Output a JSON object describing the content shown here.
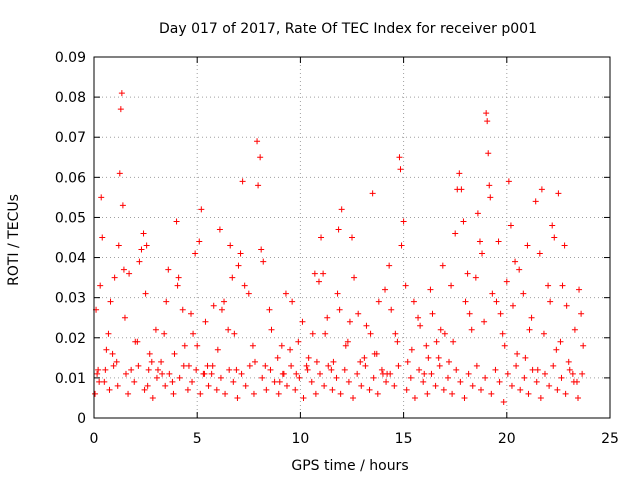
{
  "chart_data": {
    "type": "scatter",
    "title": "Day 017 of 2017, Rate Of TEC Index for receiver p001",
    "xlabel": "GPS time / hours",
    "ylabel": "ROTI / TECUs",
    "xlim": [
      0,
      25
    ],
    "ylim": [
      0,
      0.09
    ],
    "xticks": [
      0,
      5,
      10,
      15,
      20,
      25
    ],
    "xtick_labels": [
      "0",
      "5",
      "10",
      "15",
      "20",
      "25"
    ],
    "yticks": [
      0,
      0.01,
      0.02,
      0.03,
      0.04,
      0.05,
      0.06,
      0.07,
      0.08,
      0.09
    ],
    "ytick_labels": [
      "0",
      "0.01",
      "0.02",
      "0.03",
      "0.04",
      "0.05",
      "0.06",
      "0.07",
      "0.08",
      "0.09"
    ],
    "grid": true,
    "marker": "+",
    "color": "#ff0000",
    "series": [
      {
        "name": "p001",
        "x": [
          0.1,
          0.2,
          0.3,
          0.5,
          0.7,
          0.9,
          1.0,
          1.2,
          1.35,
          1.4,
          1.5,
          1.8,
          2.0,
          2.3,
          2.5,
          2.6,
          2.8,
          3.0,
          3.3,
          3.6,
          3.9,
          4.0,
          4.3,
          4.6,
          4.9,
          5.0,
          5.2,
          5.4,
          5.7,
          6.0,
          6.3,
          6.6,
          6.8,
          7.0,
          7.2,
          7.5,
          7.8,
          7.9,
          8.1,
          8.3,
          8.6,
          9.0,
          9.3,
          9.5,
          9.8,
          10.1,
          10.4,
          10.7,
          11.0,
          11.2,
          11.5,
          11.8,
          12.0,
          12.3,
          12.6,
          12.9,
          13.2,
          13.5,
          13.8,
          14.0,
          14.3,
          14.6,
          14.8,
          14.9,
          15.1,
          15.4,
          15.7,
          16.0,
          16.3,
          16.6,
          16.9,
          17.2,
          17.5,
          17.7,
          17.9,
          18.2,
          18.5,
          18.8,
          19.0,
          19.1,
          19.3,
          19.6,
          19.9,
          20.1,
          20.3,
          20.6,
          20.9,
          21.2,
          21.5,
          21.7,
          22.0,
          22.3,
          22.6,
          22.9,
          23.2,
          23.5,
          23.7,
          0.15,
          0.4,
          0.8,
          1.1,
          1.3,
          1.7,
          2.1,
          2.4,
          2.7,
          3.1,
          3.4,
          3.8,
          4.1,
          4.4,
          4.7,
          5.1,
          5.5,
          5.8,
          6.1,
          6.5,
          6.9,
          7.3,
          7.7,
          8.2,
          8.5,
          8.9,
          9.2,
          9.6,
          9.9,
          10.3,
          10.6,
          10.9,
          11.3,
          11.6,
          11.9,
          12.2,
          12.5,
          12.8,
          13.1,
          13.4,
          13.7,
          14.1,
          14.4,
          14.7,
          15.2,
          15.5,
          15.8,
          16.1,
          16.4,
          16.7,
          17.0,
          17.3,
          17.6,
          18.0,
          18.3,
          18.6,
          18.9,
          19.2,
          19.5,
          19.8,
          20.2,
          20.5,
          20.8,
          21.1,
          21.4,
          21.8,
          22.1,
          22.4,
          22.7,
          23.0,
          23.3,
          23.6,
          0.35,
          0.6,
          1.25,
          1.45,
          2.2,
          2.55,
          3.5,
          4.05,
          4.8,
          5.3,
          6.2,
          6.7,
          7.1,
          7.95,
          8.05,
          9.1,
          10.8,
          11.1,
          11.85,
          12.4,
          13.6,
          14.2,
          14.85,
          15.0,
          16.2,
          16.8,
          17.4,
          17.8,
          18.1,
          18.7,
          19.05,
          19.15,
          19.7,
          20.0,
          20.4,
          21.0,
          21.6,
          22.2,
          22.5,
          22.8,
          23.4,
          0.05,
          0.25,
          0.55,
          0.75,
          0.95,
          1.15,
          1.55,
          1.65,
          1.95,
          2.15,
          2.45,
          2.65,
          2.85,
          3.05,
          3.25,
          3.45,
          3.65,
          3.85,
          4.15,
          4.35,
          4.55,
          4.75,
          4.95,
          5.15,
          5.35,
          5.55,
          5.75,
          5.95,
          6.15,
          6.35,
          6.55,
          6.75,
          6.95,
          7.15,
          7.35,
          7.55,
          7.75,
          8.15,
          8.35,
          8.55,
          8.75,
          8.95,
          9.15,
          9.35,
          9.55,
          9.75,
          9.95,
          10.15,
          10.35,
          10.55,
          10.75,
          10.95,
          11.15,
          11.35,
          11.55,
          11.75,
          11.95,
          12.15,
          12.35,
          12.55,
          12.75,
          12.95,
          13.15,
          13.35,
          13.55,
          13.75,
          13.95,
          14.15,
          14.35,
          14.55,
          14.75,
          15.15,
          15.35,
          15.55,
          15.75,
          15.95,
          16.15,
          16.35,
          16.55,
          16.75,
          16.95,
          17.15,
          17.35,
          17.55,
          17.75,
          17.95,
          18.15,
          18.35,
          18.55,
          18.75,
          18.95,
          19.25,
          19.45,
          19.65,
          19.85,
          20.05,
          20.25,
          20.45,
          20.65,
          20.85,
          21.05,
          21.25,
          21.45,
          21.65,
          21.85,
          22.05,
          22.25,
          22.45,
          22.65,
          22.85,
          23.05,
          23.25,
          23.45,
          23.65
        ],
        "y": [
          0.027,
          0.012,
          0.033,
          0.009,
          0.021,
          0.016,
          0.035,
          0.043,
          0.081,
          0.053,
          0.025,
          0.012,
          0.019,
          0.042,
          0.031,
          0.008,
          0.014,
          0.022,
          0.011,
          0.037,
          0.016,
          0.049,
          0.027,
          0.013,
          0.041,
          0.018,
          0.052,
          0.024,
          0.011,
          0.017,
          0.029,
          0.043,
          0.021,
          0.038,
          0.059,
          0.031,
          0.014,
          0.069,
          0.042,
          0.013,
          0.022,
          0.009,
          0.031,
          0.017,
          0.011,
          0.024,
          0.015,
          0.036,
          0.045,
          0.021,
          0.012,
          0.031,
          0.052,
          0.019,
          0.035,
          0.014,
          0.023,
          0.056,
          0.029,
          0.011,
          0.038,
          0.021,
          0.065,
          0.043,
          0.033,
          0.017,
          0.025,
          0.011,
          0.032,
          0.019,
          0.038,
          0.014,
          0.046,
          0.061,
          0.049,
          0.026,
          0.035,
          0.041,
          0.076,
          0.066,
          0.031,
          0.044,
          0.018,
          0.059,
          0.028,
          0.037,
          0.015,
          0.025,
          0.012,
          0.057,
          0.033,
          0.045,
          0.019,
          0.028,
          0.011,
          0.032,
          0.018,
          0.011,
          0.045,
          0.029,
          0.014,
          0.077,
          0.036,
          0.019,
          0.046,
          0.016,
          0.012,
          0.021,
          0.009,
          0.035,
          0.018,
          0.026,
          0.044,
          0.013,
          0.028,
          0.047,
          0.022,
          0.012,
          0.033,
          0.018,
          0.039,
          0.027,
          0.015,
          0.011,
          0.029,
          0.019,
          0.013,
          0.021,
          0.034,
          0.025,
          0.014,
          0.027,
          0.018,
          0.045,
          0.026,
          0.015,
          0.021,
          0.016,
          0.032,
          0.027,
          0.019,
          0.014,
          0.029,
          0.023,
          0.018,
          0.026,
          0.015,
          0.021,
          0.033,
          0.057,
          0.029,
          0.022,
          0.051,
          0.024,
          0.055,
          0.029,
          0.021,
          0.048,
          0.016,
          0.031,
          0.022,
          0.054,
          0.021,
          0.029,
          0.017,
          0.033,
          0.014,
          0.022,
          0.026,
          0.055,
          0.017,
          0.061,
          0.037,
          0.039,
          0.043,
          0.029,
          0.033,
          0.021,
          0.011,
          0.027,
          0.035,
          0.041,
          0.058,
          0.065,
          0.018,
          0.014,
          0.036,
          0.047,
          0.024,
          0.016,
          0.011,
          0.062,
          0.049,
          0.015,
          0.022,
          0.019,
          0.057,
          0.036,
          0.044,
          0.074,
          0.058,
          0.026,
          0.034,
          0.039,
          0.043,
          0.041,
          0.048,
          0.056,
          0.043,
          0.009,
          0.006,
          0.009,
          0.012,
          0.007,
          0.013,
          0.008,
          0.011,
          0.006,
          0.009,
          0.013,
          0.007,
          0.012,
          0.005,
          0.01,
          0.014,
          0.008,
          0.011,
          0.006,
          0.01,
          0.013,
          0.007,
          0.009,
          0.012,
          0.006,
          0.011,
          0.008,
          0.013,
          0.007,
          0.01,
          0.006,
          0.012,
          0.009,
          0.005,
          0.011,
          0.008,
          0.013,
          0.006,
          0.01,
          0.007,
          0.012,
          0.009,
          0.006,
          0.011,
          0.008,
          0.013,
          0.007,
          0.01,
          0.005,
          0.012,
          0.009,
          0.006,
          0.011,
          0.008,
          0.013,
          0.007,
          0.01,
          0.006,
          0.012,
          0.009,
          0.005,
          0.011,
          0.008,
          0.013,
          0.007,
          0.01,
          0.006,
          0.012,
          0.009,
          0.011,
          0.008,
          0.013,
          0.007,
          0.01,
          0.005,
          0.012,
          0.009,
          0.006,
          0.011,
          0.008,
          0.013,
          0.007,
          0.01,
          0.006,
          0.012,
          0.009,
          0.005,
          0.011,
          0.008,
          0.013,
          0.007,
          0.01,
          0.006,
          0.012,
          0.009,
          0.004,
          0.011,
          0.008,
          0.013,
          0.007,
          0.01,
          0.006,
          0.012,
          0.009,
          0.005,
          0.011,
          0.008,
          0.013,
          0.007,
          0.01,
          0.006,
          0.012,
          0.009,
          0.005,
          0.011
        ]
      }
    ]
  }
}
